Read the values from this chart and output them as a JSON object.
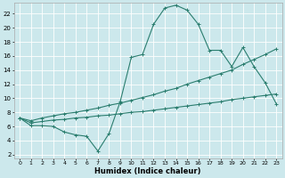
{
  "xlabel": "Humidex (Indice chaleur)",
  "bg_color": "#cce8ec",
  "grid_color": "#ffffff",
  "line_color": "#2a7d6e",
  "xlim": [
    -0.5,
    23.5
  ],
  "ylim": [
    1.5,
    23.5
  ],
  "xticks": [
    0,
    1,
    2,
    3,
    4,
    5,
    6,
    7,
    8,
    9,
    10,
    11,
    12,
    13,
    14,
    15,
    16,
    17,
    18,
    19,
    20,
    21,
    22,
    23
  ],
  "yticks": [
    2,
    4,
    6,
    8,
    10,
    12,
    14,
    16,
    18,
    20,
    22
  ],
  "line1_x": [
    0,
    1,
    2,
    3,
    4,
    5,
    6,
    7,
    8,
    9,
    10,
    11,
    12,
    13,
    14,
    15,
    16,
    17,
    18,
    19,
    20,
    21,
    22,
    23
  ],
  "line1_y": [
    7.2,
    6.1,
    6.1,
    6.0,
    5.2,
    4.8,
    4.6,
    2.5,
    5.0,
    9.5,
    15.8,
    16.2,
    20.5,
    22.8,
    23.2,
    22.5,
    20.5,
    16.8,
    16.8,
    14.5,
    17.2,
    14.5,
    12.2,
    9.2
  ],
  "line2_x": [
    0,
    1,
    2,
    3,
    4,
    5,
    6,
    7,
    8,
    9,
    10,
    11,
    12,
    13,
    14,
    15,
    16,
    17,
    18,
    19,
    20,
    21,
    22,
    23
  ],
  "line2_y": [
    7.2,
    6.8,
    7.2,
    7.5,
    7.8,
    8.0,
    8.3,
    8.6,
    9.0,
    9.3,
    9.7,
    10.1,
    10.5,
    11.0,
    11.4,
    12.0,
    12.5,
    13.0,
    13.5,
    14.0,
    14.8,
    15.5,
    16.2,
    17.0
  ],
  "line3_x": [
    0,
    1,
    2,
    3,
    4,
    5,
    6,
    7,
    8,
    9,
    10,
    11,
    12,
    13,
    14,
    15,
    16,
    17,
    18,
    19,
    20,
    21,
    22,
    23
  ],
  "line3_y": [
    7.2,
    6.5,
    6.7,
    6.9,
    7.0,
    7.2,
    7.3,
    7.5,
    7.6,
    7.8,
    8.0,
    8.1,
    8.3,
    8.5,
    8.7,
    8.9,
    9.1,
    9.3,
    9.5,
    9.8,
    10.0,
    10.2,
    10.4,
    10.6
  ]
}
